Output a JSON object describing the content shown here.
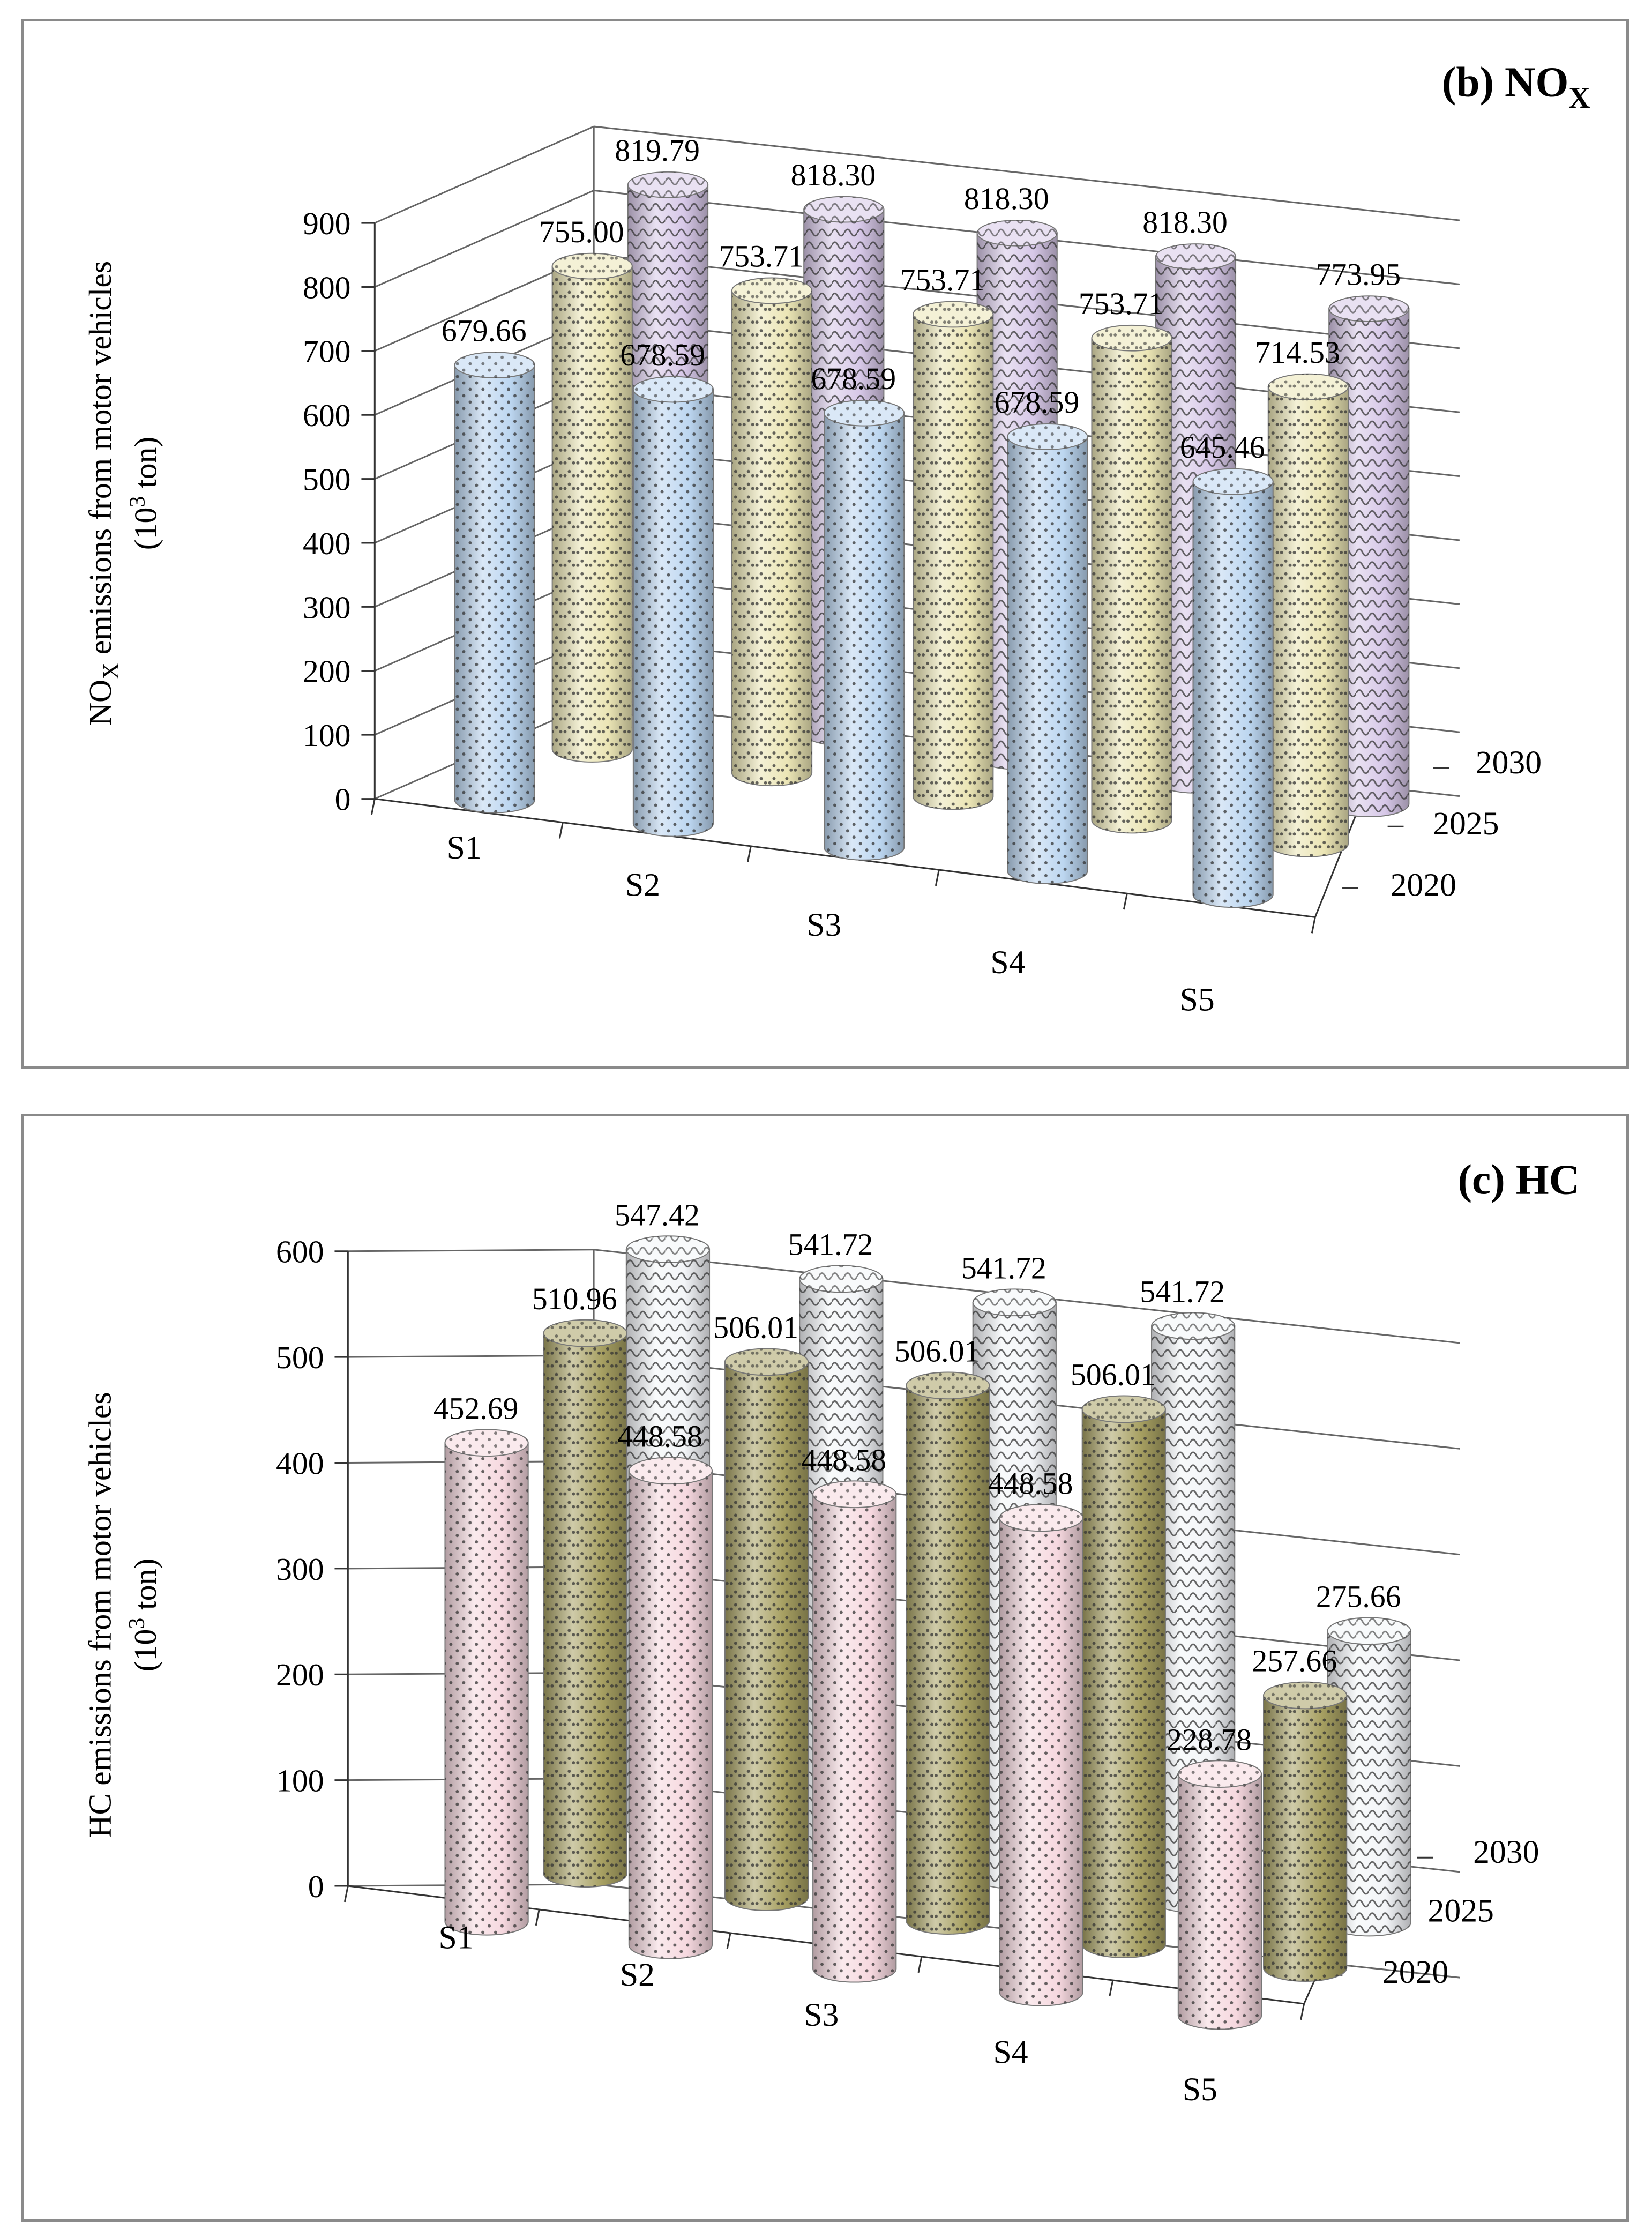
{
  "chart_data": [
    {
      "type": "bar",
      "title": "(b) NO",
      "title_subscript": "X",
      "ylabel_line1_prefix": "NO",
      "ylabel_line1_sub": "X",
      "ylabel_line1_suffix": " emissions from motor vehicles",
      "ylabel_line2_prefix": "(10",
      "ylabel_line2_sup": "3",
      "ylabel_line2_suffix": " ton)",
      "categories": [
        "S1",
        "S2",
        "S3",
        "S4",
        "S5"
      ],
      "depth_labels": [
        "2020",
        "2025",
        "2030"
      ],
      "yticks": [
        "0",
        "100",
        "200",
        "300",
        "400",
        "500",
        "600",
        "700",
        "800",
        "900"
      ],
      "ylim": [
        0,
        900
      ],
      "series": [
        {
          "name": "2020",
          "color": "#bcd6f0",
          "values": [
            679.66,
            678.59,
            678.59,
            678.59,
            645.46
          ],
          "labels": [
            "679.66",
            "678.59",
            "678.59",
            "678.59",
            "645.46"
          ]
        },
        {
          "name": "2025",
          "color": "#ebe5b5",
          "values": [
            755.0,
            753.71,
            753.71,
            753.71,
            714.53
          ],
          "labels": [
            "755.00",
            "753.71",
            "753.71",
            "753.71",
            "714.53"
          ]
        },
        {
          "name": "2030",
          "color": "#d7c8e8",
          "values": [
            819.79,
            818.3,
            818.3,
            818.3,
            773.95
          ],
          "labels": [
            "819.79",
            "818.30",
            "818.30",
            "818.30",
            "773.95"
          ]
        }
      ]
    },
    {
      "type": "bar",
      "title": "(c) HC",
      "ylabel_line1": "HC emissions from motor vehicles",
      "ylabel_line2_prefix": "(10",
      "ylabel_line2_sup": "3",
      "ylabel_line2_suffix": " ton)",
      "categories": [
        "S1",
        "S2",
        "S3",
        "S4",
        "S5"
      ],
      "depth_labels": [
        "2020",
        "2025",
        "2030"
      ],
      "yticks": [
        "0",
        "100",
        "200",
        "300",
        "400",
        "500",
        "600"
      ],
      "ylim": [
        0,
        600
      ],
      "series": [
        {
          "name": "2020",
          "color": "#f6d8df",
          "values": [
            452.69,
            448.58,
            448.58,
            448.58,
            228.78
          ],
          "labels": [
            "452.69",
            "448.58",
            "448.58",
            "448.58",
            "228.78"
          ]
        },
        {
          "name": "2025",
          "color": "#a7a062",
          "values": [
            510.96,
            506.01,
            506.01,
            506.01,
            257.66
          ],
          "labels": [
            "510.96",
            "506.01",
            "506.01",
            "506.01",
            "257.66"
          ]
        },
        {
          "name": "2030",
          "color": "#f3f5f8",
          "values": [
            547.42,
            541.72,
            541.72,
            541.72,
            275.66
          ],
          "labels": [
            "547.42",
            "541.72",
            "541.72",
            "541.72",
            "275.66"
          ]
        }
      ]
    }
  ]
}
